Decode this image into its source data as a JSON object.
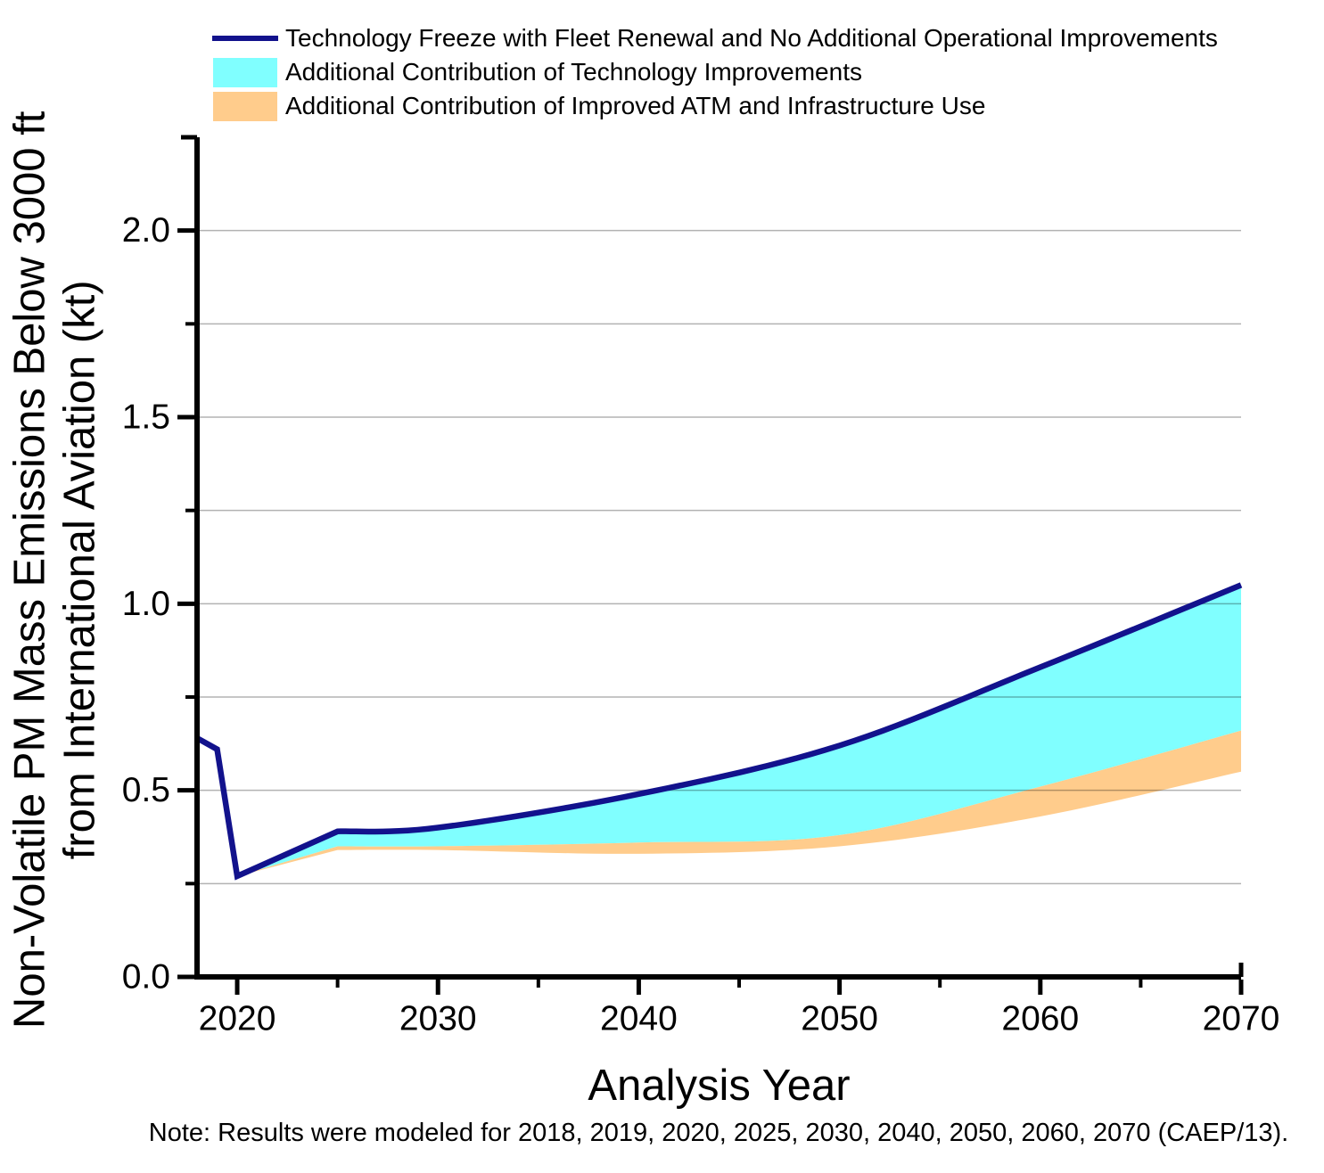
{
  "note": "Note: Results were modeled for 2018, 2019, 2020, 2025, 2030, 2040, 2050, 2060, 2070 (CAEP/13).",
  "colors": {
    "freeze_line": "#12128C",
    "tech_fill": "#80FFFF",
    "atm_fill": "#FFCC8C",
    "axis": "#000000",
    "gridline": "rgba(0,0,0,0.30)"
  },
  "legend": {
    "items": [
      {
        "type": "line",
        "color": "#12128C",
        "label": "Technology Freeze with Fleet Renewal and No Additional Operational Improvements"
      },
      {
        "type": "fill",
        "color": "#80FFFF",
        "label": "Additional Contribution of Technology Improvements"
      },
      {
        "type": "fill",
        "color": "#FFCC8C",
        "label": "Additional Contribution of Improved ATM and Infrastructure Use"
      }
    ]
  },
  "axes": {
    "x": {
      "title": "Analysis Year",
      "range": [
        2018,
        2070
      ],
      "major_ticks": [
        2020,
        2030,
        2040,
        2050,
        2060,
        2070
      ],
      "tick_labels": [
        "2020",
        "2030",
        "2040",
        "2050",
        "2060",
        "2070"
      ],
      "minor_ticks": [
        2025,
        2035,
        2045,
        2055,
        2065
      ]
    },
    "y": {
      "title_line1": "Non-Volatile PM Mass Emissions Below 3000 ft",
      "title_line2": "from International Aviation (kt)",
      "range": [
        0,
        2.25
      ],
      "major_ticks": [
        0,
        0.5,
        1.0,
        1.5,
        2.0
      ],
      "tick_labels": [
        "0.0",
        "0.5",
        "1.0",
        "1.5",
        "2.0"
      ],
      "minor_ticks": [
        0.25,
        0.75,
        1.25,
        1.75,
        2.25
      ],
      "gridline_values": [
        0.25,
        0.5,
        0.75,
        1.0,
        1.25,
        1.5,
        1.75,
        2.0
      ]
    }
  },
  "chart_data": {
    "type": "area",
    "title": "",
    "xlabel": "Analysis Year",
    "ylabel": "Non-Volatile PM Mass Emissions Below 3000 ft from International Aviation (kt)",
    "xlim": [
      2018,
      2070
    ],
    "ylim": [
      0,
      2.25
    ],
    "grid": "horizontal, every 0.25, drawn over fills",
    "legend_position": "top-left above plot",
    "x": [
      2018,
      2019,
      2020,
      2025,
      2030,
      2040,
      2050,
      2060,
      2070
    ],
    "series": [
      {
        "name": "Technology Freeze with Fleet Renewal and No Additional Operational Improvements",
        "role": "top boundary line",
        "color": "#12128C",
        "values": [
          0.64,
          0.61,
          0.27,
          0.39,
          0.4,
          0.49,
          0.62,
          0.83,
          1.05
        ]
      },
      {
        "name": "Additional Contribution of Technology Improvements",
        "role": "cyan band between freeze line and this lower boundary",
        "color": "#80FFFF",
        "values": [
          0.64,
          0.61,
          0.27,
          0.35,
          0.35,
          0.36,
          0.38,
          0.51,
          0.66
        ]
      },
      {
        "name": "Additional Contribution of Improved ATM and Infrastructure Use",
        "role": "orange band between technology boundary and this lower boundary",
        "color": "#FFCC8C",
        "values": [
          0.64,
          0.61,
          0.27,
          0.34,
          0.34,
          0.33,
          0.35,
          0.43,
          0.55
        ]
      }
    ]
  }
}
